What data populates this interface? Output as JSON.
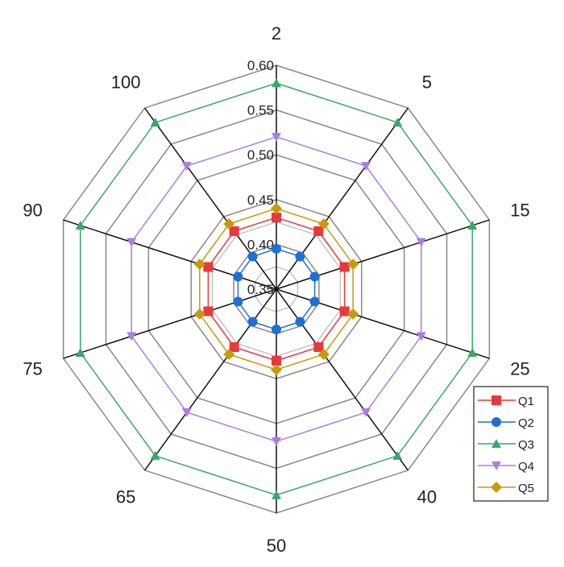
{
  "chart_data": {
    "type": "radar",
    "categories": [
      "2",
      "5",
      "15",
      "25",
      "40",
      "50",
      "65",
      "75",
      "90",
      "100"
    ],
    "rlim": [
      0.35,
      0.6
    ],
    "r_ticks": [
      "0.35",
      "0.40",
      "0.45",
      "0.50",
      "0.55",
      "0.60"
    ],
    "grid": true,
    "legend_position": "bottom-right",
    "series": [
      {
        "name": "Q1",
        "color": "#e8383d",
        "marker": "square",
        "values": [
          0.43,
          0.43,
          0.43,
          0.43,
          0.43,
          0.43,
          0.43,
          0.43,
          0.43,
          0.43
        ]
      },
      {
        "name": "Q2",
        "color": "#1f6fd6",
        "marker": "circle",
        "values": [
          0.395,
          0.395,
          0.395,
          0.395,
          0.395,
          0.395,
          0.395,
          0.395,
          0.395,
          0.395
        ]
      },
      {
        "name": "Q3",
        "color": "#3aa66a",
        "marker": "triangle-up",
        "values": [
          0.58,
          0.58,
          0.58,
          0.58,
          0.58,
          0.58,
          0.58,
          0.58,
          0.58,
          0.58
        ]
      },
      {
        "name": "Q4",
        "color": "#a97ee0",
        "marker": "triangle-down",
        "values": [
          0.52,
          0.52,
          0.52,
          0.52,
          0.52,
          0.52,
          0.52,
          0.52,
          0.52,
          0.52
        ]
      },
      {
        "name": "Q5",
        "color": "#c9990c",
        "marker": "diamond",
        "values": [
          0.44,
          0.44,
          0.44,
          0.44,
          0.44,
          0.44,
          0.44,
          0.44,
          0.44,
          0.44
        ]
      }
    ]
  }
}
